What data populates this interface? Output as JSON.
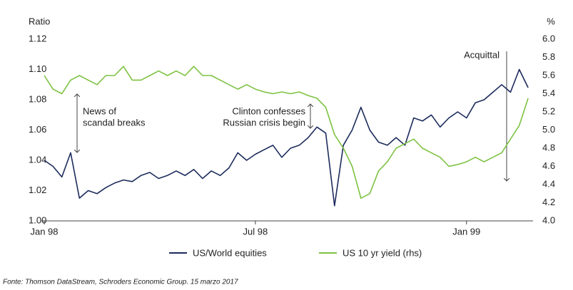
{
  "chart_data": {
    "type": "line",
    "ylabel": "Ratio",
    "y2label": "%",
    "x": [
      0,
      0.25,
      0.5,
      0.75,
      1,
      1.25,
      1.5,
      1.75,
      2,
      2.25,
      2.5,
      2.75,
      3,
      3.25,
      3.5,
      3.75,
      4,
      4.25,
      4.5,
      4.75,
      5,
      5.25,
      5.5,
      5.75,
      6,
      6.25,
      6.5,
      6.75,
      7,
      7.25,
      7.5,
      7.75,
      8,
      8.25,
      8.5,
      8.75,
      9,
      9.25,
      9.5,
      9.75,
      10,
      10.25,
      10.5,
      10.75,
      11,
      11.25,
      11.5,
      11.75,
      12,
      12.25,
      12.5,
      12.75,
      13,
      13.25,
      13.5,
      13.75
    ],
    "xlim": [
      0,
      13.85
    ],
    "xticks": [
      {
        "value": 0,
        "label": "Jan 98"
      },
      {
        "value": 6,
        "label": "Jul 98"
      },
      {
        "value": 12,
        "label": "Jan 99"
      }
    ],
    "ylim": [
      1.0,
      1.12
    ],
    "yticks": [
      {
        "value": 1.0,
        "label": "1.00"
      },
      1.02,
      1.04,
      1.06,
      1.08,
      {
        "value": 1.1,
        "label": "1.10"
      },
      1.12
    ],
    "y2lim": [
      4.0,
      6.0
    ],
    "y2ticks": [
      {
        "value": 4.0,
        "label": "4.0"
      },
      4.2,
      4.4,
      4.6,
      4.8,
      {
        "value": 5.0,
        "label": "5.0"
      },
      5.2,
      5.4,
      5.6,
      5.8,
      {
        "value": 6.0,
        "label": "6.0"
      }
    ],
    "grid": false,
    "series": [
      {
        "name": "US/World equities",
        "color": "#1c2b5c",
        "values": [
          1.04,
          1.036,
          1.029,
          1.045,
          1.015,
          1.02,
          1.018,
          1.022,
          1.025,
          1.027,
          1.026,
          1.03,
          1.032,
          1.028,
          1.03,
          1.033,
          1.03,
          1.034,
          1.028,
          1.033,
          1.03,
          1.035,
          1.045,
          1.04,
          1.044,
          1.047,
          1.05,
          1.042,
          1.048,
          1.05,
          1.055,
          1.062,
          1.058,
          1.01,
          1.05,
          1.06,
          1.075,
          1.06,
          1.052,
          1.05,
          1.055,
          1.05,
          1.068,
          1.066,
          1.07,
          1.062,
          1.068,
          1.072,
          1.068,
          1.078,
          1.08,
          1.085,
          1.09,
          1.085,
          1.1,
          1.088
        ]
      },
      {
        "name": "US 10 yr yield (rhs)",
        "color": "#7dc242",
        "axis": "y2",
        "values": [
          5.6,
          5.45,
          5.4,
          5.55,
          5.6,
          5.55,
          5.5,
          5.6,
          5.6,
          5.7,
          5.55,
          5.55,
          5.6,
          5.65,
          5.6,
          5.65,
          5.6,
          5.7,
          5.6,
          5.6,
          5.55,
          5.5,
          5.45,
          5.5,
          5.45,
          5.42,
          5.4,
          5.42,
          5.4,
          5.42,
          5.38,
          5.35,
          5.25,
          4.95,
          4.8,
          4.6,
          4.25,
          4.3,
          4.55,
          4.65,
          4.8,
          4.85,
          4.9,
          4.8,
          4.75,
          4.7,
          4.6,
          4.62,
          4.65,
          4.7,
          4.65,
          4.7,
          4.75,
          4.9,
          5.05,
          5.35
        ]
      }
    ],
    "annotations": [
      {
        "text": [
          "News of",
          "scandal breaks"
        ]
      },
      {
        "text": [
          "Clinton confesses",
          "Russian crisis begin"
        ]
      },
      {
        "text": [
          "Acquittal"
        ]
      }
    ],
    "source": "Fonte: Thomson DataStream, Schroders Economic Group. 15 marzo 2017"
  }
}
